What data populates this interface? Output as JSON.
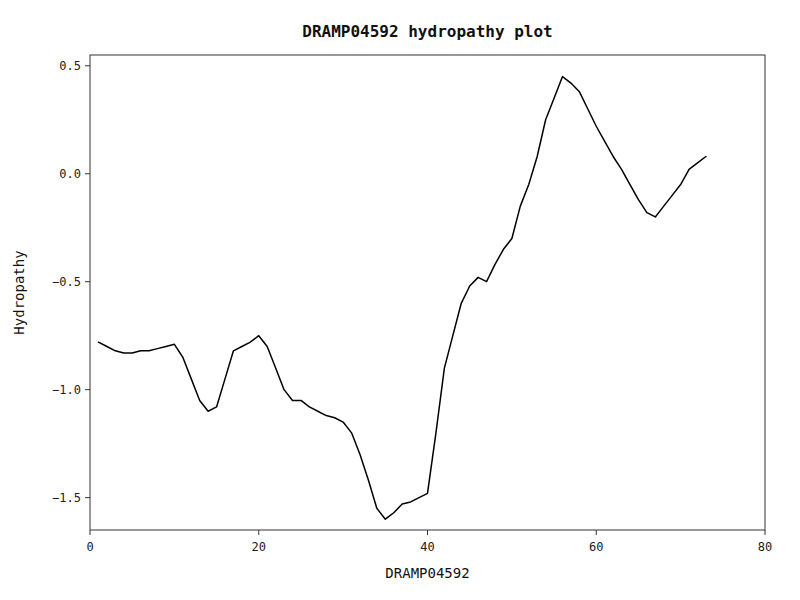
{
  "chart_data": {
    "type": "line",
    "title": "DRAMP04592 hydropathy plot",
    "x_label": "DRAMP04592",
    "y_label": "Hydropathy",
    "xlim": [
      0,
      80
    ],
    "ylim": [
      -1.65,
      0.55
    ],
    "xticks": [
      0,
      20,
      40,
      60,
      80
    ],
    "yticks": [
      {
        "value": -1.5,
        "label": "−1.5"
      },
      {
        "value": -1.0,
        "label": "−1.0"
      },
      {
        "value": -0.5,
        "label": "−0.5"
      },
      {
        "value": 0.0,
        "label": "0.0"
      },
      {
        "value": 0.5,
        "label": "0.5"
      }
    ],
    "color": "#000000",
    "grid": false,
    "x": [
      1,
      2,
      3,
      4,
      5,
      6,
      7,
      8,
      9,
      10,
      11,
      12,
      13,
      14,
      15,
      16,
      17,
      18,
      19,
      20,
      21,
      22,
      23,
      24,
      25,
      26,
      27,
      28,
      29,
      30,
      31,
      32,
      33,
      34,
      35,
      36,
      37,
      38,
      39,
      40,
      41,
      42,
      43,
      44,
      45,
      46,
      47,
      48,
      49,
      50,
      51,
      52,
      53,
      54,
      55,
      56,
      57,
      58,
      59,
      60,
      61,
      62,
      63,
      64,
      65,
      66,
      67,
      68,
      69,
      70,
      71,
      72,
      73
    ],
    "values": [
      -0.78,
      -0.8,
      -0.82,
      -0.83,
      -0.83,
      -0.82,
      -0.82,
      -0.81,
      -0.8,
      -0.79,
      -0.85,
      -0.95,
      -1.05,
      -1.1,
      -1.08,
      -0.95,
      -0.82,
      -0.8,
      -0.78,
      -0.75,
      -0.8,
      -0.9,
      -1.0,
      -1.05,
      -1.05,
      -1.08,
      -1.1,
      -1.12,
      -1.13,
      -1.15,
      -1.2,
      -1.3,
      -1.42,
      -1.55,
      -1.6,
      -1.57,
      -1.53,
      -1.52,
      -1.5,
      -1.48,
      -1.2,
      -0.9,
      -0.75,
      -0.6,
      -0.52,
      -0.48,
      -0.5,
      -0.42,
      -0.35,
      -0.3,
      -0.15,
      -0.05,
      0.08,
      0.25,
      0.35,
      0.45,
      0.42,
      0.38,
      0.3,
      0.22,
      0.15,
      0.08,
      0.02,
      -0.05,
      -0.12,
      -0.18,
      -0.2,
      -0.15,
      -0.1,
      -0.05,
      0.02,
      0.05,
      0.08
    ]
  }
}
